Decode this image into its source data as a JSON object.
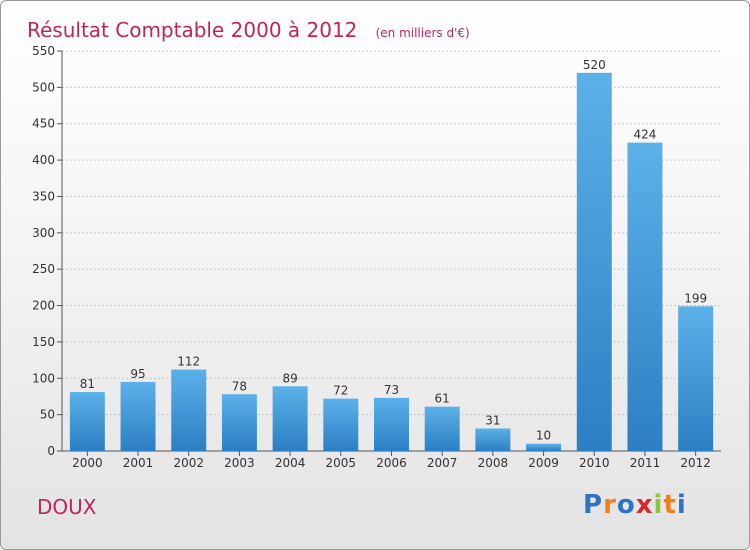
{
  "chart_data": {
    "type": "bar",
    "title": "Résultat Comptable 2000 à 2012",
    "subtitle": "(en milliers d'€)",
    "xlabel": "",
    "ylabel": "",
    "ylim": [
      0,
      550
    ],
    "yticks": [
      0,
      50,
      100,
      150,
      200,
      250,
      300,
      350,
      400,
      450,
      500,
      550
    ],
    "grid": true,
    "categories": [
      "2000",
      "2001",
      "2002",
      "2003",
      "2004",
      "2005",
      "2006",
      "2007",
      "2008",
      "2009",
      "2010",
      "2011",
      "2012"
    ],
    "values": [
      81,
      95,
      112,
      78,
      89,
      72,
      73,
      61,
      31,
      10,
      520,
      424,
      199
    ],
    "data_labels": [
      "81",
      "95",
      "112",
      "78",
      "89",
      "72",
      "73",
      "61",
      "31",
      "10",
      "520",
      "424",
      "199"
    ]
  },
  "footer": {
    "commune": "DOUX",
    "brand_letters": [
      "P",
      "r",
      "o",
      "x",
      "i",
      "t",
      "i"
    ]
  },
  "colors": {
    "title": "#c0245c",
    "bar_top": "#5cb1e9",
    "bar_bottom": "#2b7fc3",
    "grid": "#c8c8c8",
    "axis": "#555555",
    "text": "#333333",
    "brand": [
      "#2f73c4",
      "#f0801c",
      "#2f73c4",
      "#d8262e",
      "#8cc63f",
      "#f0801c",
      "#2f73c4"
    ]
  }
}
